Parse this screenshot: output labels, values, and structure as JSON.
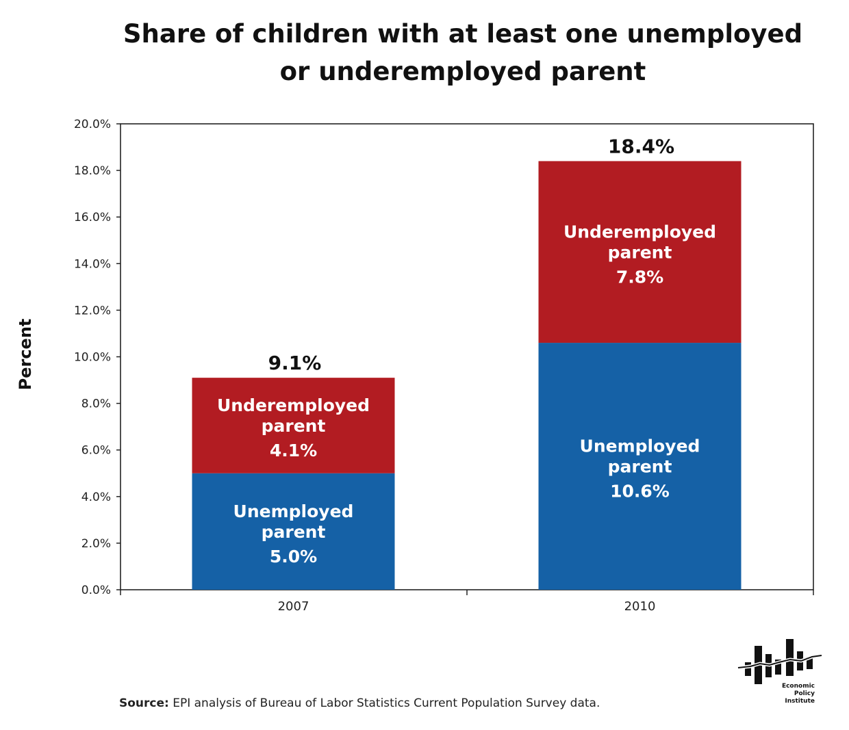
{
  "chart_data": {
    "type": "bar",
    "stacked": true,
    "title": "Share of children with at least one unemployed or underemployed parent",
    "title_lines": [
      "Share of children with at least one unemployed",
      "or underemployed parent"
    ],
    "ylabel": "Percent",
    "xlabel": "",
    "ylim": [
      0,
      20
    ],
    "yticks": [
      "0.0%",
      "2.0%",
      "4.0%",
      "6.0%",
      "8.0%",
      "10.0%",
      "12.0%",
      "14.0%",
      "16.0%",
      "18.0%",
      "20.0%"
    ],
    "categories": [
      "2007",
      "2010"
    ],
    "series": [
      {
        "name": "Unemployed parent",
        "label_lines": [
          "Unemployed",
          "parent"
        ],
        "values": [
          5.0,
          10.6
        ],
        "value_labels": [
          "5.0%",
          "10.6%"
        ],
        "color": "#1561a6"
      },
      {
        "name": "Underemployed parent",
        "label_lines": [
          "Underemployed",
          "parent"
        ],
        "values": [
          4.1,
          7.8
        ],
        "value_labels": [
          "4.1%",
          "7.8%"
        ],
        "color": "#b21c22"
      }
    ],
    "totals": [
      9.1,
      18.4
    ],
    "total_labels": [
      "9.1%",
      "18.4%"
    ],
    "grid": false,
    "legend": "none"
  },
  "source": {
    "label": "Source:",
    "text": " EPI analysis of Bureau of Labor Statistics Current Population Survey data."
  },
  "logo": {
    "lines": [
      "Economic",
      "Policy",
      "Institute"
    ]
  },
  "colors": {
    "text": "#111111",
    "axis": "#222222",
    "bar_label": "#ffffff"
  }
}
